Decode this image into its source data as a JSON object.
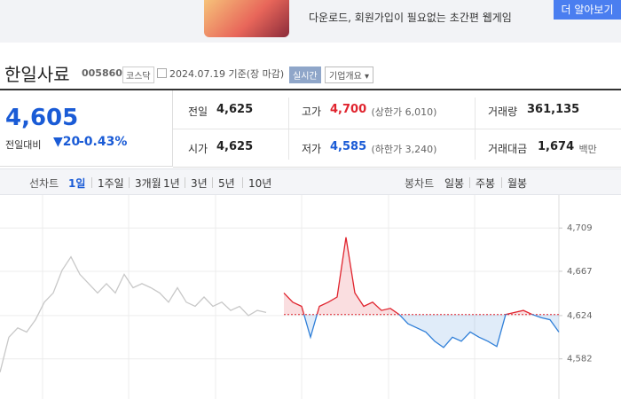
{
  "banner": {
    "text": "다운로드, 회원가입이 필요없는 초간편 웹게임",
    "button": "더 알아보기"
  },
  "header": {
    "name": "한일사료",
    "code": "005860",
    "market": "코스닥",
    "date": "2024.07.19 기준(장 마감)",
    "realtime": "실시간",
    "company_info": "기업개요"
  },
  "quote": {
    "price": "4,605",
    "change_label": "전일대비",
    "change": "20",
    "change_pct": "-0.43%",
    "rows": [
      [
        {
          "label": "전일",
          "value": "4,625"
        },
        {
          "label": "고가",
          "value": "4,700",
          "extra": "(상한가 6,010)"
        },
        {
          "label": "거래량",
          "value": "361,135"
        }
      ],
      [
        {
          "label": "시가",
          "value": "4,625"
        },
        {
          "label": "저가",
          "value": "4,585",
          "extra": "(하한가 3,240)"
        },
        {
          "label": "거래대금",
          "value": "1,674",
          "extra": "백만"
        }
      ]
    ]
  },
  "tabs": {
    "line_label": "선차트",
    "periods": [
      "1일",
      "1주일",
      "3개월",
      "1년",
      "3년",
      "5년",
      "10년"
    ],
    "selected_period": 0,
    "candle_label": "봉차트",
    "candles": [
      "일봉",
      "주봉",
      "월봉"
    ]
  },
  "chart_data": {
    "type": "line",
    "ylim": [
      4543,
      4741
    ],
    "yticks": [
      {
        "value": 4709,
        "label": "4,709"
      },
      {
        "value": 4667,
        "label": "4,667"
      },
      {
        "value": 4624,
        "label": "4,624"
      },
      {
        "value": 4582,
        "label": "4,582"
      }
    ],
    "grid": true,
    "baseline": 4625,
    "series": [
      {
        "color": "#c8c8c8",
        "values": [
          4569,
          4603,
          4612,
          4608,
          4620,
          4637,
          4646,
          4668,
          4681,
          4664,
          4655,
          4646,
          4655,
          4646,
          4664,
          4651,
          4655,
          4651,
          4646,
          4637,
          4651,
          4637,
          4633,
          4642,
          4633,
          4637,
          4629,
          4633,
          4624,
          4629,
          4627,
          null,
          null,
          null,
          null,
          null,
          null,
          null,
          null,
          null,
          null,
          null,
          null,
          null,
          null,
          null,
          null,
          null,
          null,
          null,
          null,
          null,
          null,
          null,
          null,
          null,
          null,
          null,
          null,
          null,
          null,
          null,
          null,
          null
        ]
      },
      {
        "color": "#e0242e",
        "color_down": "#2f7fd8",
        "values": [
          null,
          null,
          null,
          null,
          null,
          null,
          null,
          null,
          null,
          null,
          null,
          null,
          null,
          null,
          null,
          null,
          null,
          null,
          null,
          null,
          null,
          null,
          null,
          null,
          null,
          null,
          null,
          null,
          null,
          null,
          null,
          null,
          4646,
          4637,
          4633,
          4603,
          4633,
          4637,
          4642,
          4700,
          4646,
          4633,
          4637,
          4629,
          4631,
          4625,
          4616,
          4612,
          4608,
          4599,
          4593,
          4603,
          4599,
          4608,
          4603,
          4599,
          4594,
          4625,
          4627,
          4629,
          4625,
          4622,
          4620,
          4608
        ]
      }
    ]
  }
}
